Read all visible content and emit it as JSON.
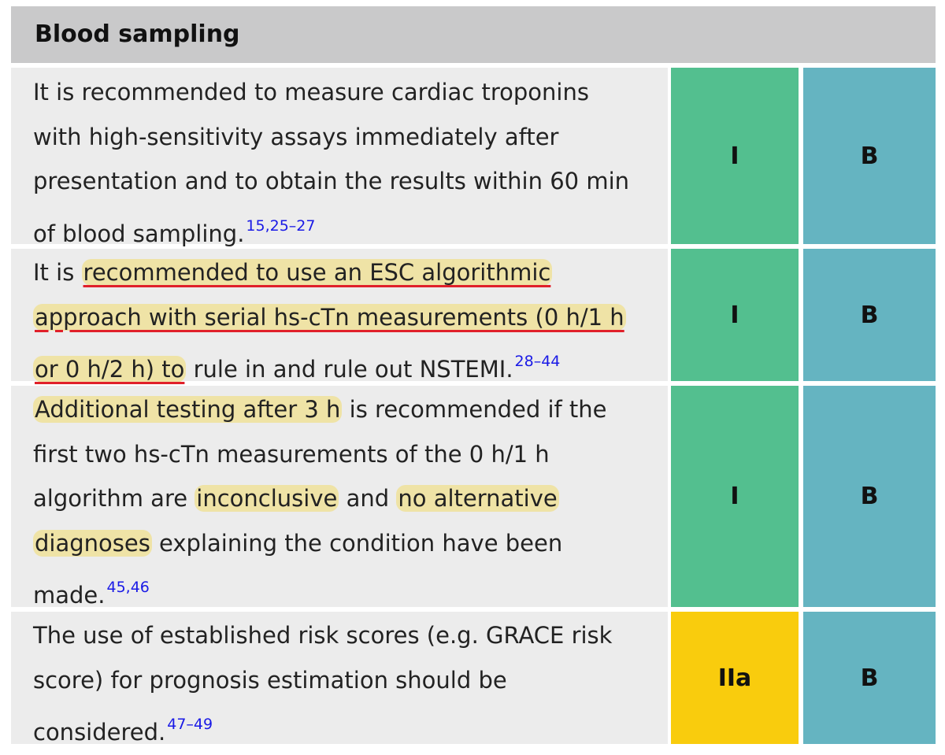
{
  "header": {
    "title": "Blood sampling"
  },
  "colors": {
    "header_bg": "#c9c9ca",
    "row_bg": "#ececec",
    "class_I": "#53bf8f",
    "class_IIa": "#f9cc0d",
    "level_B": "#65b4c1",
    "reference": "#1a1ae6",
    "highlight": "#efe3a6",
    "underline": "#e0202a"
  },
  "rows": [
    {
      "lines": [
        "It is recommended to measure cardiac troponins",
        "with high-sensitivity assays immediately after",
        "presentation and to obtain the results within 60 min",
        "of blood sampling."
      ],
      "refs": "15,25–27",
      "class": "I",
      "level": "B"
    },
    {
      "segments": [
        "It is ",
        "recommended to use an ESC algorithmic",
        "approach with serial hs-cTn measurements (0 h/1 h",
        "or 0 h/2 h) to",
        " rule in and rule out NSTEMI."
      ],
      "refs": "28–44",
      "class": "I",
      "level": "B"
    },
    {
      "segments": [
        "Additional testing after 3 h",
        " is recommended if the",
        "first two hs-cTn measurements of the 0 h/1 h",
        "algorithm are ",
        "inconclusive",
        " and ",
        "no alternative",
        "diagnoses",
        " explaining the condition have been",
        "made."
      ],
      "refs": "45,46",
      "class": "I",
      "level": "B"
    },
    {
      "lines": [
        "The use of established risk scores (e.g. GRACE risk",
        "score) for prognosis estimation should be",
        "considered."
      ],
      "refs": "47–49",
      "class": "IIa",
      "level": "B"
    }
  ]
}
